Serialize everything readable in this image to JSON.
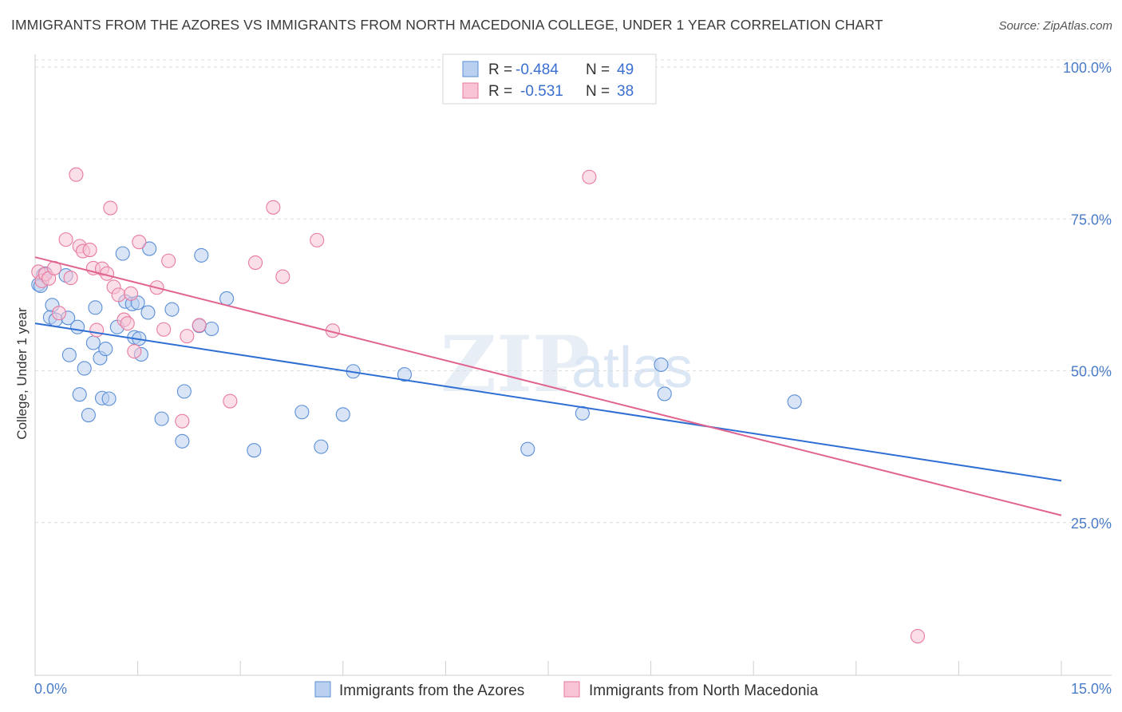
{
  "header": {
    "title": "IMMIGRANTS FROM THE AZORES VS IMMIGRANTS FROM NORTH MACEDONIA COLLEGE, UNDER 1 YEAR CORRELATION CHART",
    "source": "Source: ZipAtlas.com"
  },
  "watermark": {
    "zip": "ZIP",
    "atlas": "atlas"
  },
  "legend": {
    "rows": [
      {
        "r_label": "R =",
        "r_value": "-0.484",
        "n_label": "N =",
        "n_value": "49"
      },
      {
        "r_label": "R =",
        "r_value": "-0.531",
        "n_label": "N =",
        "n_value": "38"
      }
    ]
  },
  "bottom_legend": {
    "azores": "Immigrants from the Azores",
    "macedonia": "Immigrants from North Macedonia"
  },
  "chart_data": {
    "type": "scatter",
    "title": "IMMIGRANTS FROM THE AZORES VS IMMIGRANTS FROM NORTH MACEDONIA COLLEGE, UNDER 1 YEAR CORRELATION CHART",
    "xlabel": "",
    "ylabel": "College, Under 1 year",
    "xlim": [
      0,
      15
    ],
    "ylim": [
      0,
      100
    ],
    "x_tick_labels": [
      "0.0%",
      "15.0%"
    ],
    "y_ticks": [
      25,
      50,
      75,
      100
    ],
    "y_tick_labels": [
      "25.0%",
      "50.0%",
      "75.0%",
      "100.0%"
    ],
    "grid": true,
    "colors": {
      "azores": "#5b8fd6",
      "azores_fill": "#b9d0f0",
      "macedonia": "#e87aa0",
      "macedonia_fill": "#f8c4d5"
    },
    "series": [
      {
        "name": "Immigrants from the Azores",
        "r": -0.484,
        "n": 49,
        "trend": {
          "x0": 0,
          "y0": 57.8,
          "x1": 15,
          "y1": 31.9
        },
        "points": [
          [
            0.05,
            64.2
          ],
          [
            0.12,
            65.8
          ],
          [
            0.15,
            66.0
          ],
          [
            0.25,
            60.8
          ],
          [
            0.22,
            58.8
          ],
          [
            0.3,
            58.4
          ],
          [
            0.45,
            65.7
          ],
          [
            0.48,
            58.7
          ],
          [
            0.62,
            57.2
          ],
          [
            0.5,
            52.6
          ],
          [
            0.65,
            46.1
          ],
          [
            0.72,
            50.4
          ],
          [
            0.78,
            42.7
          ],
          [
            0.85,
            54.6
          ],
          [
            0.88,
            60.4
          ],
          [
            0.95,
            52.1
          ],
          [
            0.98,
            45.5
          ],
          [
            1.03,
            53.6
          ],
          [
            1.08,
            45.4
          ],
          [
            1.2,
            57.2
          ],
          [
            1.28,
            69.3
          ],
          [
            1.32,
            61.4
          ],
          [
            1.42,
            61.0
          ],
          [
            1.45,
            55.5
          ],
          [
            1.5,
            61.2
          ],
          [
            1.52,
            55.3
          ],
          [
            1.55,
            52.7
          ],
          [
            1.65,
            59.6
          ],
          [
            1.67,
            70.1
          ],
          [
            1.85,
            42.1
          ],
          [
            2.0,
            60.1
          ],
          [
            2.15,
            38.4
          ],
          [
            2.18,
            46.6
          ],
          [
            2.4,
            57.4
          ],
          [
            2.43,
            69.0
          ],
          [
            2.58,
            56.9
          ],
          [
            2.8,
            61.9
          ],
          [
            3.2,
            36.9
          ],
          [
            3.9,
            43.2
          ],
          [
            4.18,
            37.5
          ],
          [
            4.5,
            42.8
          ],
          [
            4.65,
            49.9
          ],
          [
            5.4,
            49.4
          ],
          [
            7.2,
            37.1
          ],
          [
            8.0,
            43.0
          ],
          [
            9.15,
            51.0
          ],
          [
            9.2,
            46.2
          ],
          [
            11.1,
            44.9
          ],
          [
            0.08,
            64.0
          ]
        ]
      },
      {
        "name": "Immigrants from North Macedonia",
        "r": -0.531,
        "n": 38,
        "trend": {
          "x0": 0,
          "y0": 68.7,
          "x1": 15,
          "y1": 26.2
        },
        "points": [
          [
            0.05,
            66.3
          ],
          [
            0.1,
            64.8
          ],
          [
            0.15,
            65.9
          ],
          [
            0.2,
            65.2
          ],
          [
            0.28,
            66.9
          ],
          [
            0.35,
            59.5
          ],
          [
            0.45,
            71.6
          ],
          [
            0.52,
            65.3
          ],
          [
            0.6,
            82.3
          ],
          [
            0.65,
            70.5
          ],
          [
            0.7,
            69.7
          ],
          [
            0.8,
            69.9
          ],
          [
            0.85,
            66.9
          ],
          [
            0.9,
            56.7
          ],
          [
            0.98,
            66.8
          ],
          [
            1.05,
            66.0
          ],
          [
            1.1,
            76.8
          ],
          [
            1.15,
            63.8
          ],
          [
            1.22,
            62.5
          ],
          [
            1.3,
            58.4
          ],
          [
            1.35,
            57.8
          ],
          [
            1.4,
            62.7
          ],
          [
            1.45,
            53.2
          ],
          [
            1.52,
            71.2
          ],
          [
            1.78,
            63.7
          ],
          [
            1.88,
            56.8
          ],
          [
            1.95,
            68.1
          ],
          [
            2.15,
            41.7
          ],
          [
            2.22,
            55.7
          ],
          [
            2.4,
            57.5
          ],
          [
            2.85,
            45.0
          ],
          [
            3.22,
            67.8
          ],
          [
            3.48,
            76.9
          ],
          [
            3.62,
            65.5
          ],
          [
            4.12,
            71.5
          ],
          [
            4.35,
            56.6
          ],
          [
            8.1,
            81.9
          ],
          [
            12.9,
            6.3
          ]
        ]
      }
    ]
  }
}
